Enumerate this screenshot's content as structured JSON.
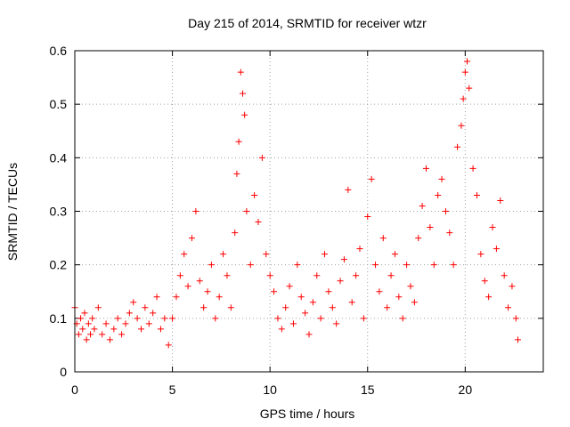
{
  "chart_data": {
    "type": "scatter",
    "title": "Day 215 of 2014, SRMTID for receiver wtzr",
    "xlabel": "GPS time / hours",
    "ylabel": "SRMTID / TECUs",
    "xlim": [
      0,
      24
    ],
    "ylim": [
      0,
      0.6
    ],
    "xticks": [
      0,
      5,
      10,
      15,
      20
    ],
    "xtick_labels": [
      "0",
      "5",
      "10",
      "15",
      "20"
    ],
    "yticks": [
      0,
      0.1,
      0.2,
      0.3,
      0.4,
      0.5,
      0.6
    ],
    "ytick_labels": [
      "0",
      "0.1",
      "0.2",
      "0.3",
      "0.4",
      "0.5",
      "0.6"
    ],
    "grid": true,
    "marker": "plus",
    "color": "#ff0000",
    "series": [
      {
        "name": "SRMTID",
        "x": [
          0.0,
          0.1,
          0.2,
          0.3,
          0.4,
          0.5,
          0.6,
          0.7,
          0.8,
          0.9,
          1.0,
          1.2,
          1.4,
          1.6,
          1.8,
          2.0,
          2.2,
          2.4,
          2.6,
          2.8,
          3.0,
          3.2,
          3.4,
          3.6,
          3.8,
          4.0,
          4.2,
          4.4,
          4.6,
          4.8,
          5.0,
          5.2,
          5.4,
          5.6,
          5.8,
          6.0,
          6.2,
          6.4,
          6.6,
          6.8,
          7.0,
          7.2,
          7.4,
          7.6,
          7.8,
          8.0,
          8.2,
          8.3,
          8.4,
          8.5,
          8.6,
          8.7,
          8.8,
          9.0,
          9.2,
          9.4,
          9.6,
          9.8,
          10.0,
          10.2,
          10.4,
          10.6,
          10.8,
          11.0,
          11.2,
          11.4,
          11.6,
          11.8,
          12.0,
          12.2,
          12.4,
          12.6,
          12.8,
          13.0,
          13.2,
          13.4,
          13.6,
          13.8,
          14.0,
          14.2,
          14.4,
          14.6,
          14.8,
          15.0,
          15.2,
          15.4,
          15.6,
          15.8,
          16.0,
          16.2,
          16.4,
          16.6,
          16.8,
          17.0,
          17.2,
          17.4,
          17.6,
          17.8,
          18.0,
          18.2,
          18.4,
          18.6,
          18.8,
          19.0,
          19.2,
          19.4,
          19.6,
          19.8,
          19.9,
          20.0,
          20.1,
          20.2,
          20.4,
          20.6,
          20.8,
          21.0,
          21.2,
          21.4,
          21.6,
          21.8,
          22.0,
          22.2,
          22.4,
          22.6,
          22.7
        ],
        "y": [
          0.12,
          0.09,
          0.07,
          0.1,
          0.08,
          0.11,
          0.06,
          0.09,
          0.07,
          0.1,
          0.08,
          0.12,
          0.07,
          0.09,
          0.06,
          0.08,
          0.1,
          0.07,
          0.09,
          0.11,
          0.13,
          0.1,
          0.08,
          0.12,
          0.09,
          0.11,
          0.14,
          0.08,
          0.1,
          0.05,
          0.1,
          0.14,
          0.18,
          0.22,
          0.16,
          0.25,
          0.3,
          0.17,
          0.12,
          0.15,
          0.2,
          0.1,
          0.14,
          0.22,
          0.18,
          0.12,
          0.26,
          0.37,
          0.43,
          0.56,
          0.52,
          0.48,
          0.3,
          0.2,
          0.33,
          0.28,
          0.4,
          0.22,
          0.18,
          0.15,
          0.1,
          0.08,
          0.12,
          0.16,
          0.09,
          0.2,
          0.14,
          0.11,
          0.07,
          0.13,
          0.18,
          0.1,
          0.22,
          0.15,
          0.12,
          0.09,
          0.17,
          0.21,
          0.34,
          0.13,
          0.18,
          0.23,
          0.1,
          0.29,
          0.36,
          0.2,
          0.15,
          0.25,
          0.12,
          0.18,
          0.22,
          0.14,
          0.1,
          0.2,
          0.16,
          0.13,
          0.25,
          0.31,
          0.38,
          0.27,
          0.2,
          0.33,
          0.36,
          0.3,
          0.26,
          0.2,
          0.42,
          0.46,
          0.51,
          0.56,
          0.58,
          0.53,
          0.38,
          0.33,
          0.22,
          0.17,
          0.14,
          0.27,
          0.23,
          0.32,
          0.18,
          0.12,
          0.16,
          0.1,
          0.06
        ]
      }
    ]
  }
}
